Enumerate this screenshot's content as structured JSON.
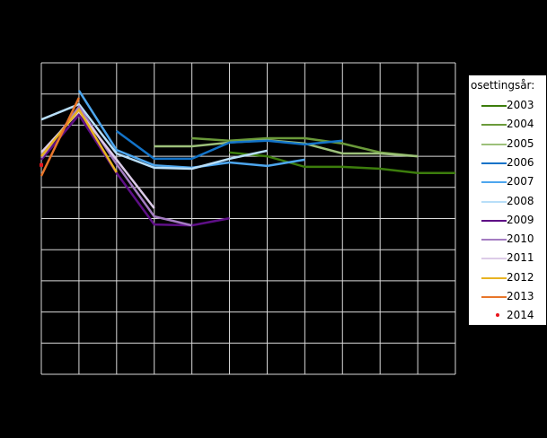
{
  "chart_data": {
    "type": "line",
    "title": "",
    "xlabel": "",
    "ylabel": "",
    "note": "Axis tick labels are not visible in the screenshot (rendered black on black); values below are expressed on a relative 0-100 scale where each horizontal gridline = 10 units.",
    "x_count": 12,
    "ylim": [
      0,
      100
    ],
    "grid": true,
    "legend_position": "right",
    "legend_title": "osettingsår:",
    "series": [
      {
        "name": "2003",
        "color": "#3c7d0c",
        "start": 5,
        "values": [
          71.2,
          70.0,
          66.6,
          66.6,
          66.0,
          64.6,
          64.6
        ]
      },
      {
        "name": "2004",
        "color": "#6a9a3a",
        "start": 4,
        "values": [
          75.8,
          75.0,
          75.8,
          75.8,
          74.1,
          71.2,
          70.0
        ]
      },
      {
        "name": "2005",
        "color": "#9cc07a",
        "start": 3,
        "values": [
          73.2,
          73.2,
          74.4,
          75.2,
          74.1,
          70.9,
          70.9,
          70.0
        ]
      },
      {
        "name": "2006",
        "color": "#1373c8",
        "start": 2,
        "values": [
          78.1,
          69.2,
          69.2,
          74.4,
          75.0,
          73.8,
          75.0
        ]
      },
      {
        "name": "2007",
        "color": "#4da6ee",
        "start": 1,
        "values": [
          91.1,
          72.0,
          67.1,
          66.3,
          68.0,
          66.9,
          68.9
        ]
      },
      {
        "name": "2008",
        "color": "#b8def8",
        "start": 0,
        "values": [
          81.8,
          86.7,
          70.9,
          66.3,
          66.0,
          69.2,
          71.8
        ]
      },
      {
        "name": "2009",
        "color": "#5e0f86",
        "start": 0,
        "values": [
          68.9,
          83.3,
          64.6,
          48.1,
          47.8,
          50.1
        ]
      },
      {
        "name": "2010",
        "color": "#a47cc2",
        "start": 0,
        "values": [
          69.5,
          85.9,
          67.5,
          50.7,
          47.8
        ]
      },
      {
        "name": "2011",
        "color": "#dccbe8",
        "start": 0,
        "values": [
          71.2,
          84.4,
          68.9,
          53.3
        ]
      },
      {
        "name": "2012",
        "color": "#e8b321",
        "start": 0,
        "values": [
          70.0,
          85.0,
          64.8
        ]
      },
      {
        "name": "2013",
        "color": "#e8762a",
        "start": 0,
        "values": [
          63.7,
          88.8
        ]
      },
      {
        "name": "2014",
        "color": "#e8141c",
        "start": 0,
        "values": [
          67.2
        ],
        "marker_only": true
      }
    ]
  },
  "legend": {
    "title": "osettingsår:",
    "items": [
      {
        "label": "2003",
        "color": "#3c7d0c",
        "type": "line"
      },
      {
        "label": "2004",
        "color": "#6a9a3a",
        "type": "line"
      },
      {
        "label": "2005",
        "color": "#9cc07a",
        "type": "line"
      },
      {
        "label": "2006",
        "color": "#1373c8",
        "type": "line"
      },
      {
        "label": "2007",
        "color": "#4da6ee",
        "type": "line"
      },
      {
        "label": "2008",
        "color": "#b8def8",
        "type": "line"
      },
      {
        "label": "2009",
        "color": "#5e0f86",
        "type": "line"
      },
      {
        "label": "2010",
        "color": "#a47cc2",
        "type": "line"
      },
      {
        "label": "2011",
        "color": "#dccbe8",
        "type": "line"
      },
      {
        "label": "2012",
        "color": "#e8b321",
        "type": "line"
      },
      {
        "label": "2013",
        "color": "#e8762a",
        "type": "line"
      },
      {
        "label": "2014",
        "color": "#e8141c",
        "type": "dot"
      }
    ]
  },
  "colors": {
    "background": "#000000",
    "grid": "#d9d9d9",
    "legend_bg": "#ffffff"
  }
}
